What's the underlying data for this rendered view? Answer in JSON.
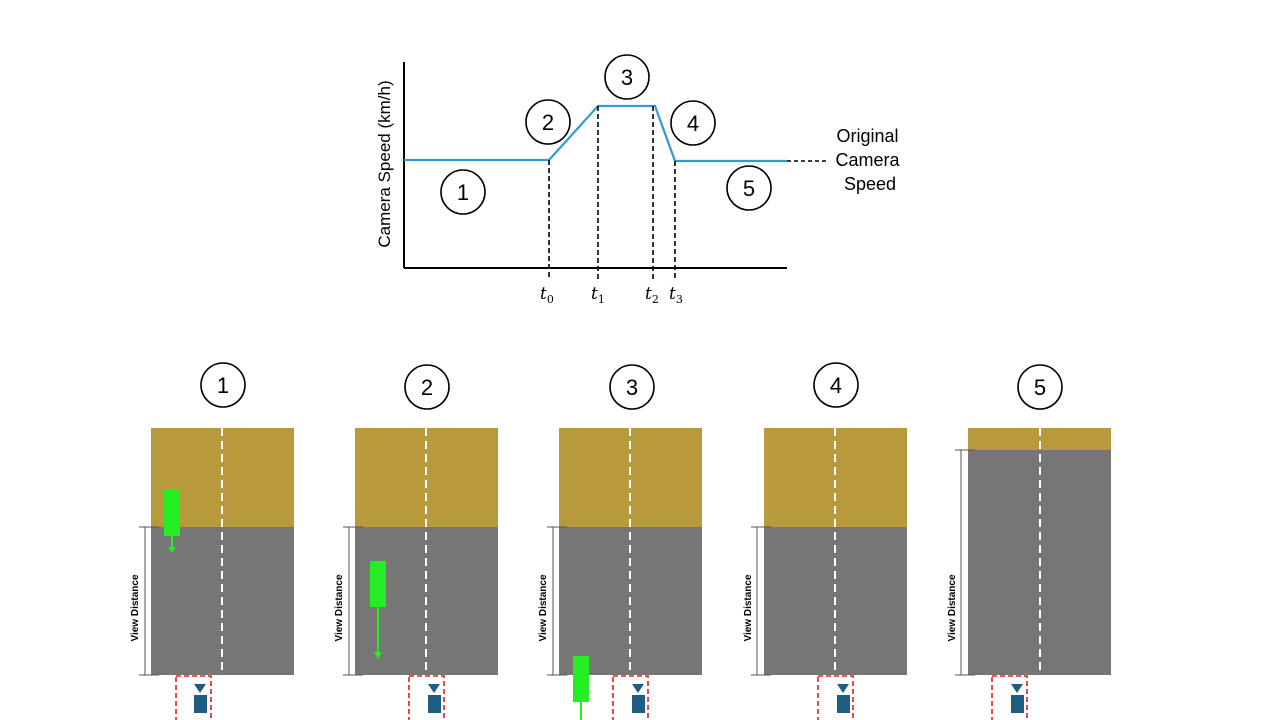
{
  "graph": {
    "y_axis_label": "Camera Speed (km/h)",
    "original_label_lines": [
      "Original",
      "Camera",
      "Speed"
    ],
    "phase_numbers": [
      "1",
      "2",
      "3",
      "4",
      "5"
    ],
    "time_markers": [
      {
        "base": "t",
        "sub": "0"
      },
      {
        "base": "t",
        "sub": "1"
      },
      {
        "base": "t",
        "sub": "2"
      },
      {
        "base": "t",
        "sub": "3"
      }
    ]
  },
  "panels": [
    {
      "number": "1",
      "view_label": "View Distance",
      "vehicle": true,
      "vehicle_stage": "entering"
    },
    {
      "number": "2",
      "view_label": "View Distance",
      "vehicle": true,
      "vehicle_stage": "mid"
    },
    {
      "number": "3",
      "view_label": "View Distance",
      "vehicle": true,
      "vehicle_stage": "passing"
    },
    {
      "number": "4",
      "view_label": "View Distance",
      "vehicle": false
    },
    {
      "number": "5",
      "view_label": "View Distance",
      "vehicle": false
    }
  ],
  "colors": {
    "speed_line": "#2e9bd6",
    "offroad": "#b8993c",
    "road": "#767676",
    "vehicle": "#22ee22",
    "camera": "#1f5e82",
    "camera_box": "#e02020"
  }
}
